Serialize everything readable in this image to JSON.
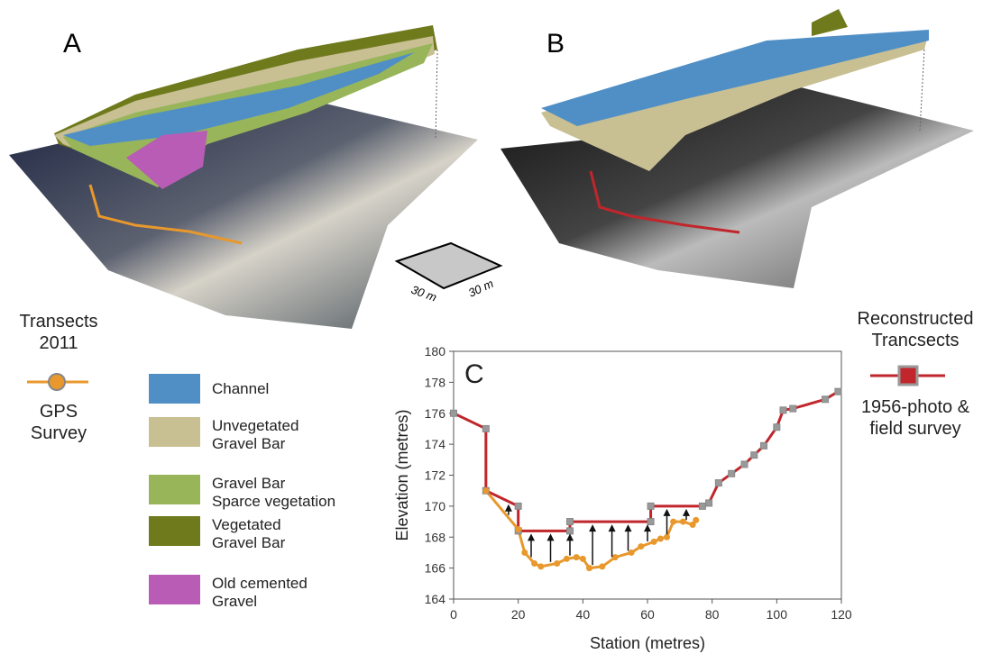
{
  "panels": {
    "a": "A",
    "b": "B",
    "scale_x": "30 m",
    "scale_y": "30 m"
  },
  "left_legend": {
    "title": "Transects\n2011",
    "label": "GPS\nSurvey",
    "color": "#e8982c"
  },
  "right_legend": {
    "title": "Reconstructed\nTrancsects",
    "label": "1956-photo &\nfield survey",
    "color": "#c0262b"
  },
  "map_legend": [
    {
      "label": "Channel",
      "color": "#4f8fc6"
    },
    {
      "label": "Unvegetated\nGravel Bar",
      "color": "#c8bf93"
    },
    {
      "label": "Gravel Bar\nSparce vegetation",
      "color": "#98b55a"
    },
    {
      "label": "Vegetated\nGravel Bar",
      "color": "#6f7a1c"
    },
    {
      "label": "Old cemented\nGravel",
      "color": "#b85cb5"
    }
  ],
  "chart_data": {
    "type": "line",
    "panel_label": "C",
    "x_label": "Station (metres)",
    "y_label": "Elevation (metres)",
    "xlim": [
      0,
      120
    ],
    "xticks": [
      0,
      20,
      40,
      60,
      80,
      100,
      120
    ],
    "ylim": [
      164,
      180
    ],
    "yticks": [
      164,
      166,
      168,
      170,
      172,
      174,
      176,
      178,
      180
    ],
    "series": [
      {
        "name": "1956-photo & field survey",
        "color": "#c0262b",
        "marker": "square",
        "x": [
          0,
          10,
          10,
          20,
          20,
          36,
          36,
          61,
          61,
          77,
          79,
          82,
          86,
          90,
          93,
          96,
          100,
          102,
          105,
          115,
          119
        ],
        "values": [
          176,
          175,
          171,
          170,
          168.4,
          168.4,
          169,
          169,
          170,
          170,
          170.2,
          171.5,
          172.1,
          172.7,
          173.3,
          173.9,
          175.1,
          176.2,
          176.3,
          176.9,
          177.4
        ]
      },
      {
        "name": "GPS Survey",
        "color": "#e8982c",
        "marker": "circle",
        "x": [
          10,
          20,
          22,
          25,
          27,
          32,
          35,
          38,
          40,
          42,
          46,
          50,
          55,
          58,
          62,
          64,
          66,
          68,
          71,
          74,
          75
        ],
        "values": [
          171,
          168.5,
          167,
          166.3,
          166.1,
          166.3,
          166.6,
          166.7,
          166.6,
          166,
          166.1,
          166.7,
          167,
          167.4,
          167.7,
          167.9,
          168,
          169,
          169,
          168.8,
          169.1
        ]
      }
    ],
    "arrows_x": [
      17,
      24,
      30,
      36,
      43,
      49,
      54,
      60,
      66,
      72
    ]
  }
}
